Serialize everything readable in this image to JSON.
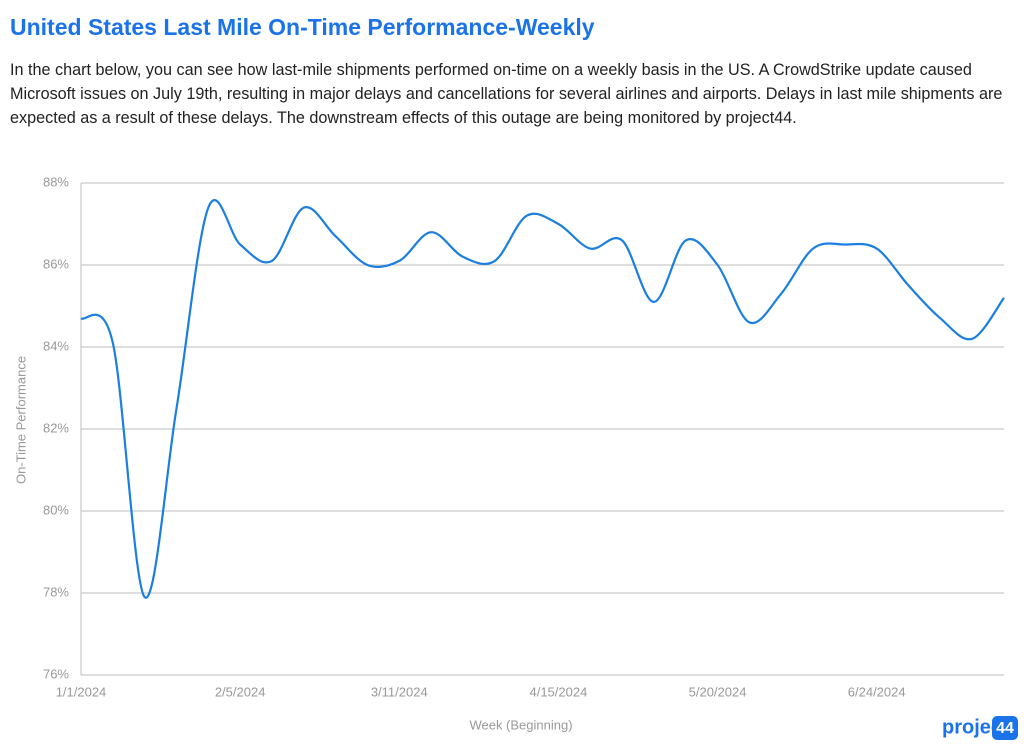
{
  "header": {
    "title": "United States Last Mile On-Time Performance-Weekly",
    "description": "In the chart below, you can see how last-mile shipments performed on-time on a weekly basis in the US. A CrowdStrike update caused Microsoft issues on July 19th, resulting in major delays and cancellations for several airlines and airports. Delays in last mile shipments are expected as a result of these delays. The downstream effects of this outage are being monitored by project44."
  },
  "logo": {
    "text": "project",
    "badge": "44"
  },
  "chart_data": {
    "type": "line",
    "x_label": "Week (Beginning)",
    "y_label": "On-Time Performance",
    "categories": [
      "1/1/2024",
      null,
      null,
      null,
      null,
      "2/5/2024",
      null,
      null,
      null,
      null,
      "3/11/2024",
      null,
      null,
      null,
      null,
      "4/15/2024",
      null,
      null,
      null,
      null,
      "5/20/2024",
      null,
      null,
      null,
      null,
      "6/24/2024",
      null,
      null,
      null,
      null
    ],
    "series": [
      {
        "name": "On-Time Performance",
        "color": "#1a7fe0",
        "values": [
          84.7,
          84.1,
          77.9,
          82.5,
          87.4,
          86.5,
          86.1,
          87.4,
          86.7,
          86.0,
          86.1,
          86.8,
          86.2,
          86.1,
          87.2,
          87.0,
          86.4,
          86.6,
          85.1,
          86.6,
          86.0,
          84.6,
          85.3,
          86.4,
          86.5,
          86.4,
          85.5,
          84.7,
          84.2,
          85.2
        ]
      }
    ],
    "ylim": [
      76,
      88
    ],
    "yticks": [
      {
        "value": 76,
        "label": "76%"
      },
      {
        "value": 78,
        "label": "78%"
      },
      {
        "value": 80,
        "label": "80%"
      },
      {
        "value": 82,
        "label": "82%"
      },
      {
        "value": 84,
        "label": "84%"
      },
      {
        "value": 86,
        "label": "86%"
      },
      {
        "value": 88,
        "label": "88%"
      }
    ],
    "grid": true
  }
}
